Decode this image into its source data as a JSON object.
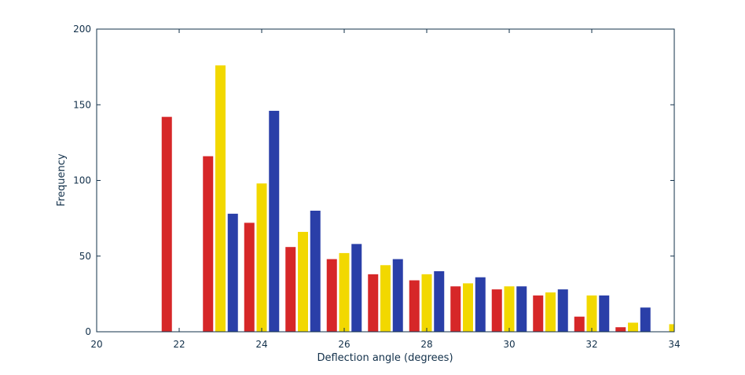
{
  "chart_data": {
    "type": "bar",
    "title": "",
    "xlabel": "Deflection angle (degrees)",
    "ylabel": "Frequency",
    "xlim": [
      20,
      34
    ],
    "ylim": [
      0,
      200
    ],
    "x_ticks": [
      20,
      22,
      24,
      26,
      28,
      30,
      32,
      34
    ],
    "y_ticks": [
      0,
      50,
      100,
      150,
      200
    ],
    "x_tick_labels": [
      "20",
      "22",
      "24",
      "26",
      "28",
      "30",
      "32",
      "34"
    ],
    "y_tick_labels": [
      "0",
      "50",
      "100",
      "150",
      "200"
    ],
    "grid": false,
    "legend": "none",
    "series": [
      {
        "color": "#d62728",
        "points": [
          {
            "x": 21.7,
            "y": 142
          },
          {
            "x": 22.7,
            "y": 116
          },
          {
            "x": 23.7,
            "y": 72
          },
          {
            "x": 24.7,
            "y": 56
          },
          {
            "x": 25.7,
            "y": 48
          },
          {
            "x": 26.7,
            "y": 38
          },
          {
            "x": 27.7,
            "y": 34
          },
          {
            "x": 28.7,
            "y": 30
          },
          {
            "x": 29.7,
            "y": 28
          },
          {
            "x": 30.7,
            "y": 24
          },
          {
            "x": 31.7,
            "y": 10
          },
          {
            "x": 32.7,
            "y": 3
          }
        ]
      },
      {
        "color": "#f2d800",
        "points": [
          {
            "x": 23.0,
            "y": 176
          },
          {
            "x": 24.0,
            "y": 98
          },
          {
            "x": 25.0,
            "y": 66
          },
          {
            "x": 26.0,
            "y": 52
          },
          {
            "x": 27.0,
            "y": 44
          },
          {
            "x": 28.0,
            "y": 38
          },
          {
            "x": 29.0,
            "y": 32
          },
          {
            "x": 30.0,
            "y": 30
          },
          {
            "x": 31.0,
            "y": 26
          },
          {
            "x": 32.0,
            "y": 24
          },
          {
            "x": 33.0,
            "y": 6
          },
          {
            "x": 34.0,
            "y": 5
          }
        ]
      },
      {
        "color": "#2a3fa8",
        "points": [
          {
            "x": 23.3,
            "y": 78
          },
          {
            "x": 24.3,
            "y": 146
          },
          {
            "x": 25.3,
            "y": 80
          },
          {
            "x": 26.3,
            "y": 58
          },
          {
            "x": 27.3,
            "y": 48
          },
          {
            "x": 28.3,
            "y": 40
          },
          {
            "x": 29.3,
            "y": 36
          },
          {
            "x": 30.3,
            "y": 30
          },
          {
            "x": 31.3,
            "y": 28
          },
          {
            "x": 32.3,
            "y": 24
          },
          {
            "x": 33.3,
            "y": 16
          }
        ]
      }
    ]
  }
}
